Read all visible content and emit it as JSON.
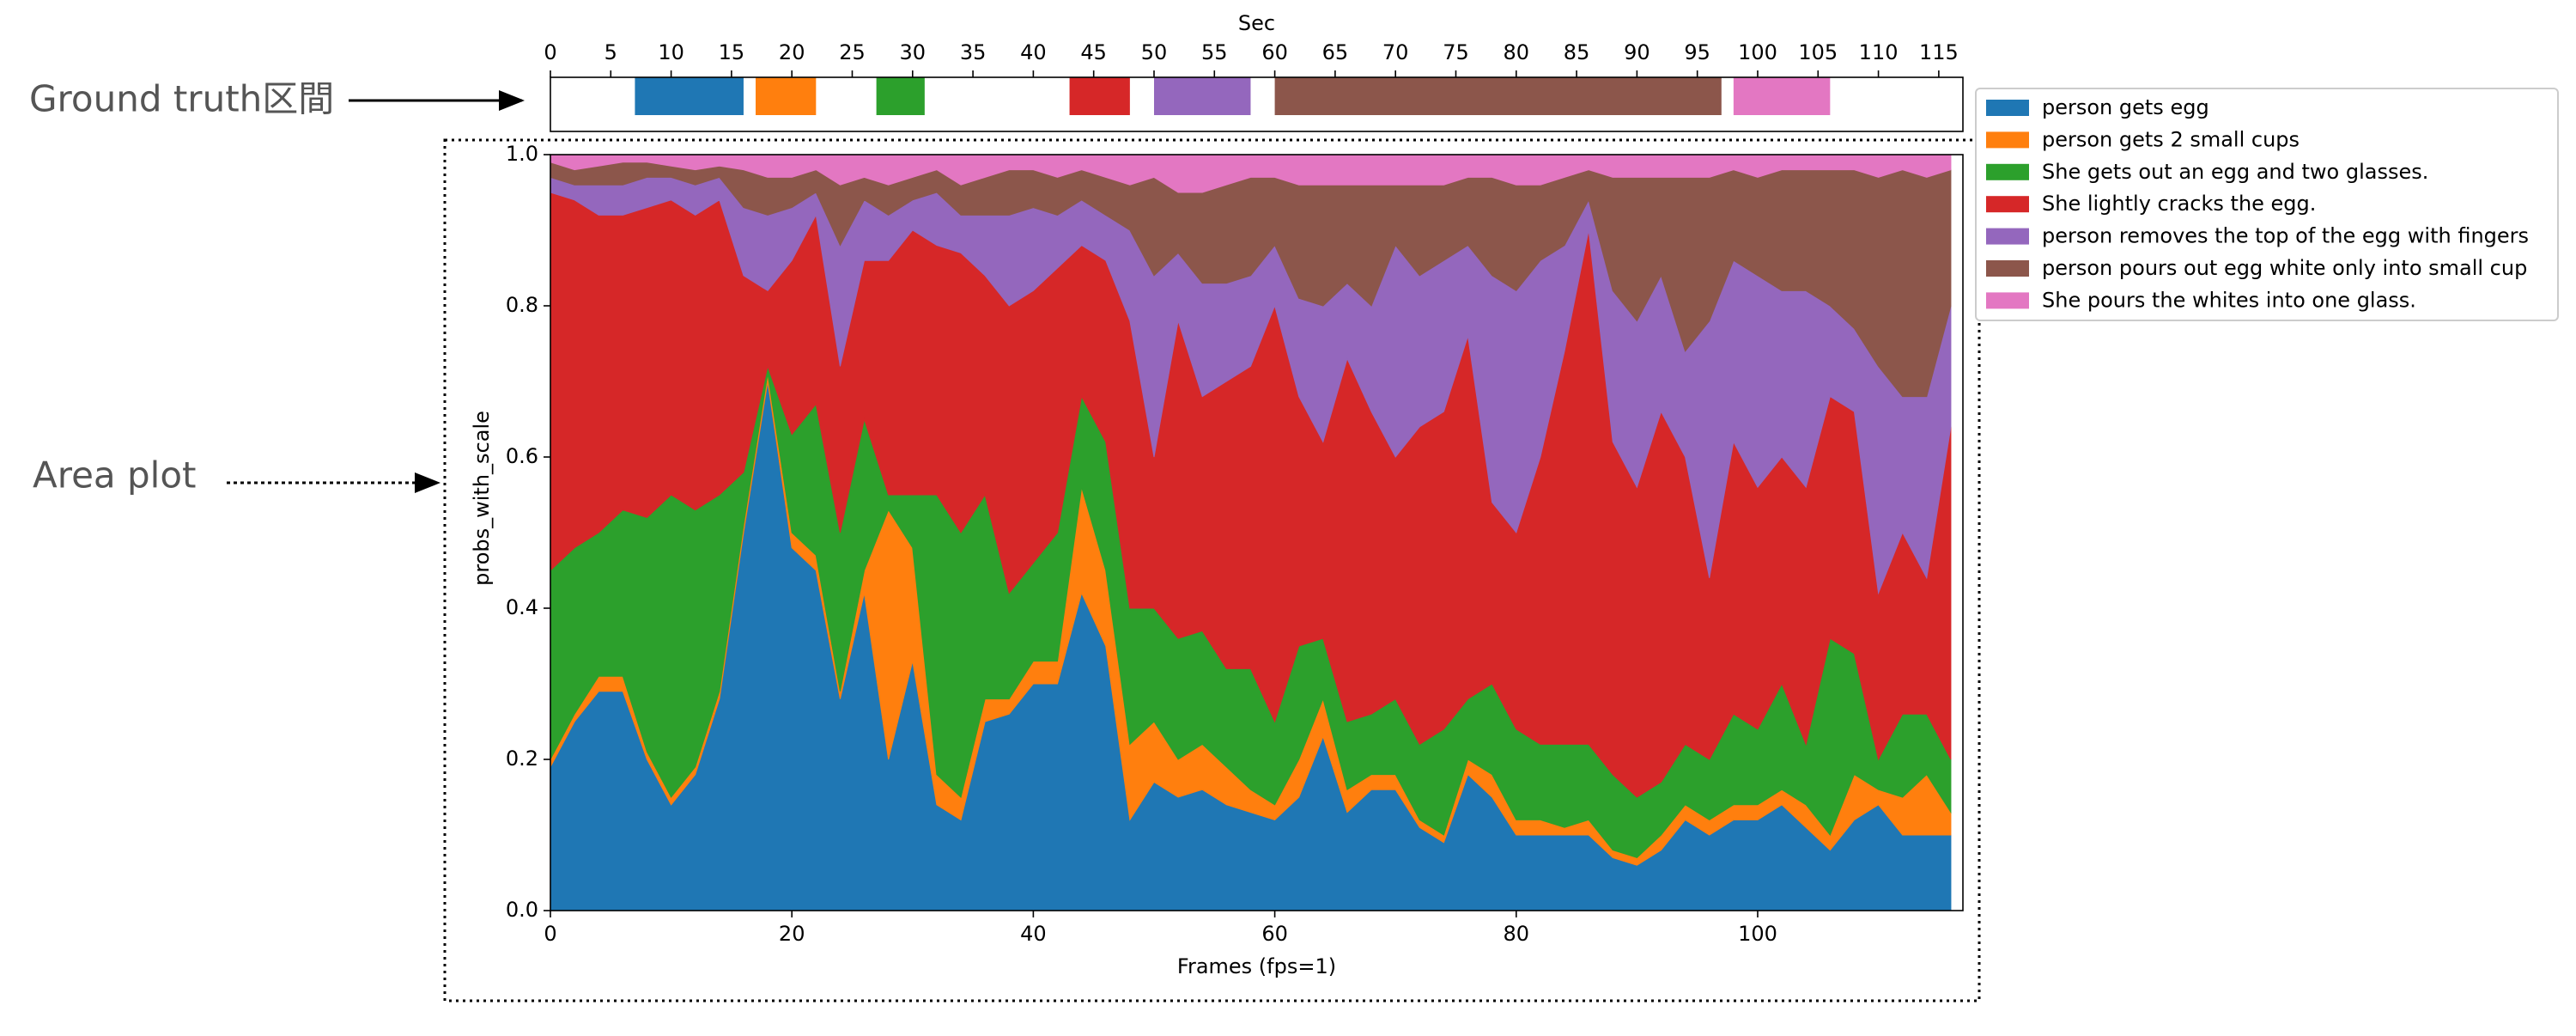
{
  "chart_data": {
    "type": "area",
    "stacked": true,
    "xlabel": "Frames (fps=1)",
    "ylabel": "probs_with_scale",
    "x2label": "Sec",
    "annotations": [
      "Ground truth区間",
      "Area plot"
    ],
    "xlim": [
      0,
      117
    ],
    "ylim": [
      0,
      1
    ],
    "xticks": [
      0,
      20,
      40,
      60,
      80,
      100
    ],
    "yticks": [
      {
        "value": 0,
        "label": "0.0"
      },
      0.2,
      0.4,
      0.6,
      0.8,
      {
        "value": 1,
        "label": "1.0"
      }
    ],
    "x2lim": [
      0,
      117
    ],
    "x2ticks": [
      0,
      5,
      10,
      15,
      20,
      25,
      30,
      35,
      40,
      45,
      50,
      55,
      60,
      65,
      70,
      75,
      80,
      85,
      90,
      95,
      100,
      105,
      110,
      115
    ],
    "legend": "outside right",
    "ground_truth": [
      {
        "start": 7,
        "end": 16
      },
      {
        "start": 17,
        "end": 22
      },
      {
        "start": 27,
        "end": 31
      },
      {
        "start": 43,
        "end": 48
      },
      {
        "start": 50,
        "end": 58
      },
      {
        "start": 60,
        "end": 97
      },
      {
        "start": 98,
        "end": 106
      }
    ],
    "x": [
      0,
      2,
      4,
      6,
      8,
      10,
      12,
      14,
      16,
      18,
      20,
      22,
      24,
      26,
      28,
      30,
      32,
      34,
      36,
      38,
      40,
      42,
      44,
      46,
      48,
      50,
      52,
      54,
      56,
      58,
      60,
      62,
      64,
      66,
      68,
      70,
      72,
      74,
      76,
      78,
      80,
      82,
      84,
      86,
      88,
      90,
      92,
      94,
      96,
      98,
      100,
      102,
      104,
      106,
      108,
      110,
      112,
      114,
      116
    ],
    "series": [
      {
        "name": "person gets egg",
        "color": "#1f77b4",
        "values": [
          0.19,
          0.25,
          0.29,
          0.29,
          0.2,
          0.14,
          0.18,
          0.28,
          0.5,
          0.7,
          0.48,
          0.45,
          0.28,
          0.42,
          0.2,
          0.33,
          0.14,
          0.12,
          0.25,
          0.26,
          0.3,
          0.3,
          0.42,
          0.35,
          0.12,
          0.17,
          0.15,
          0.16,
          0.14,
          0.13,
          0.12,
          0.15,
          0.23,
          0.13,
          0.16,
          0.16,
          0.11,
          0.09,
          0.18,
          0.15,
          0.1,
          0.1,
          0.1,
          0.1,
          0.07,
          0.06,
          0.08,
          0.12,
          0.1,
          0.12,
          0.12,
          0.14,
          0.11,
          0.08,
          0.12,
          0.14,
          0.1,
          0.1,
          0.1
        ]
      },
      {
        "name": "person gets 2 small cups",
        "color": "#ff7f0e",
        "values": [
          0.01,
          0.01,
          0.02,
          0.02,
          0.01,
          0.01,
          0.01,
          0.01,
          0.01,
          0.01,
          0.02,
          0.02,
          0.01,
          0.03,
          0.33,
          0.15,
          0.04,
          0.03,
          0.03,
          0.02,
          0.03,
          0.03,
          0.14,
          0.1,
          0.1,
          0.08,
          0.05,
          0.06,
          0.05,
          0.03,
          0.02,
          0.05,
          0.05,
          0.03,
          0.02,
          0.02,
          0.01,
          0.01,
          0.02,
          0.03,
          0.02,
          0.02,
          0.01,
          0.02,
          0.01,
          0.01,
          0.02,
          0.02,
          0.02,
          0.02,
          0.02,
          0.02,
          0.03,
          0.02,
          0.06,
          0.02,
          0.05,
          0.08,
          0.03
        ]
      },
      {
        "name": "She gets out an egg and two glasses.",
        "color": "#2ca02c",
        "values": [
          0.25,
          0.22,
          0.19,
          0.22,
          0.31,
          0.4,
          0.34,
          0.26,
          0.07,
          0.01,
          0.13,
          0.2,
          0.21,
          0.2,
          0.02,
          0.07,
          0.37,
          0.35,
          0.27,
          0.14,
          0.13,
          0.17,
          0.12,
          0.17,
          0.18,
          0.15,
          0.16,
          0.15,
          0.13,
          0.16,
          0.11,
          0.15,
          0.08,
          0.09,
          0.08,
          0.1,
          0.1,
          0.14,
          0.08,
          0.12,
          0.12,
          0.1,
          0.11,
          0.1,
          0.1,
          0.08,
          0.07,
          0.08,
          0.08,
          0.12,
          0.1,
          0.14,
          0.08,
          0.26,
          0.16,
          0.04,
          0.11,
          0.08,
          0.07
        ]
      },
      {
        "name": "She lightly cracks the egg.",
        "color": "#d62728",
        "values": [
          0.5,
          0.46,
          0.42,
          0.39,
          0.41,
          0.39,
          0.39,
          0.39,
          0.26,
          0.1,
          0.23,
          0.25,
          0.22,
          0.21,
          0.31,
          0.35,
          0.33,
          0.37,
          0.29,
          0.38,
          0.36,
          0.35,
          0.2,
          0.24,
          0.38,
          0.2,
          0.42,
          0.31,
          0.38,
          0.4,
          0.55,
          0.33,
          0.26,
          0.48,
          0.4,
          0.32,
          0.42,
          0.42,
          0.48,
          0.24,
          0.26,
          0.38,
          0.52,
          0.68,
          0.44,
          0.41,
          0.49,
          0.38,
          0.24,
          0.36,
          0.32,
          0.3,
          0.34,
          0.32,
          0.32,
          0.22,
          0.24,
          0.18,
          0.44
        ]
      },
      {
        "name": "person removes the top of the egg with fingers",
        "color": "#9467bd",
        "values": [
          0.02,
          0.02,
          0.04,
          0.04,
          0.04,
          0.03,
          0.04,
          0.03,
          0.09,
          0.1,
          0.07,
          0.03,
          0.16,
          0.08,
          0.06,
          0.04,
          0.07,
          0.05,
          0.08,
          0.12,
          0.11,
          0.07,
          0.06,
          0.06,
          0.12,
          0.24,
          0.09,
          0.15,
          0.13,
          0.12,
          0.08,
          0.13,
          0.18,
          0.1,
          0.14,
          0.28,
          0.2,
          0.2,
          0.12,
          0.3,
          0.32,
          0.26,
          0.14,
          0.04,
          0.2,
          0.22,
          0.18,
          0.14,
          0.34,
          0.24,
          0.28,
          0.22,
          0.26,
          0.12,
          0.11,
          0.3,
          0.18,
          0.24,
          0.16
        ]
      },
      {
        "name": "person pours out egg white only into small cup",
        "color": "#8c564b",
        "values": [
          0.02,
          0.02,
          0.025,
          0.03,
          0.02,
          0.015,
          0.02,
          0.015,
          0.05,
          0.05,
          0.04,
          0.03,
          0.08,
          0.03,
          0.04,
          0.03,
          0.03,
          0.04,
          0.05,
          0.06,
          0.05,
          0.05,
          0.04,
          0.05,
          0.06,
          0.13,
          0.08,
          0.12,
          0.13,
          0.13,
          0.09,
          0.15,
          0.16,
          0.13,
          0.16,
          0.08,
          0.12,
          0.1,
          0.09,
          0.13,
          0.14,
          0.1,
          0.09,
          0.04,
          0.15,
          0.19,
          0.13,
          0.23,
          0.19,
          0.12,
          0.13,
          0.16,
          0.16,
          0.18,
          0.21,
          0.25,
          0.3,
          0.29,
          0.18
        ]
      },
      {
        "name": "She pours the whites into one glass.",
        "color": "#e377c2",
        "values": [
          0.01,
          0.02,
          0.015,
          0.01,
          0.01,
          0.015,
          0.02,
          0.015,
          0.02,
          0.03,
          0.03,
          0.02,
          0.04,
          0.03,
          0.04,
          0.03,
          0.02,
          0.04,
          0.03,
          0.02,
          0.02,
          0.03,
          0.02,
          0.03,
          0.04,
          0.03,
          0.05,
          0.05,
          0.04,
          0.03,
          0.03,
          0.04,
          0.04,
          0.04,
          0.04,
          0.04,
          0.04,
          0.04,
          0.03,
          0.03,
          0.04,
          0.04,
          0.03,
          0.02,
          0.03,
          0.03,
          0.03,
          0.03,
          0.03,
          0.02,
          0.03,
          0.02,
          0.02,
          0.02,
          0.02,
          0.03,
          0.02,
          0.03,
          0.02
        ]
      }
    ]
  }
}
